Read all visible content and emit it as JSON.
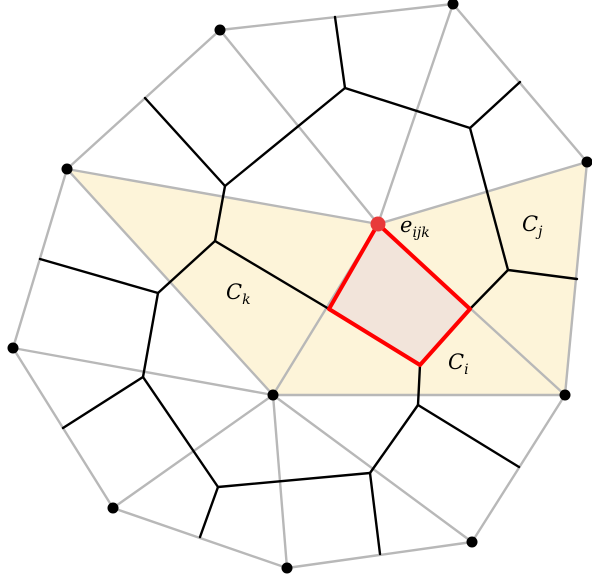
{
  "diagram": {
    "labels": {
      "vertex_label": {
        "base": "e",
        "sub": "ijk"
      },
      "cell_k": {
        "base": "C",
        "sub": "k"
      },
      "cell_j": {
        "base": "C",
        "sub": "j"
      },
      "cell_i": {
        "base": "C",
        "sub": "i"
      }
    },
    "colors": {
      "triangle_fill": "#fdf4d9",
      "highlight_fill": "#f2e4da",
      "highlight_stroke": "#ff0000",
      "highlight_vertex": "#e83a3a",
      "gray_edges": "#b8b8b8",
      "black_edges": "#000000"
    }
  }
}
